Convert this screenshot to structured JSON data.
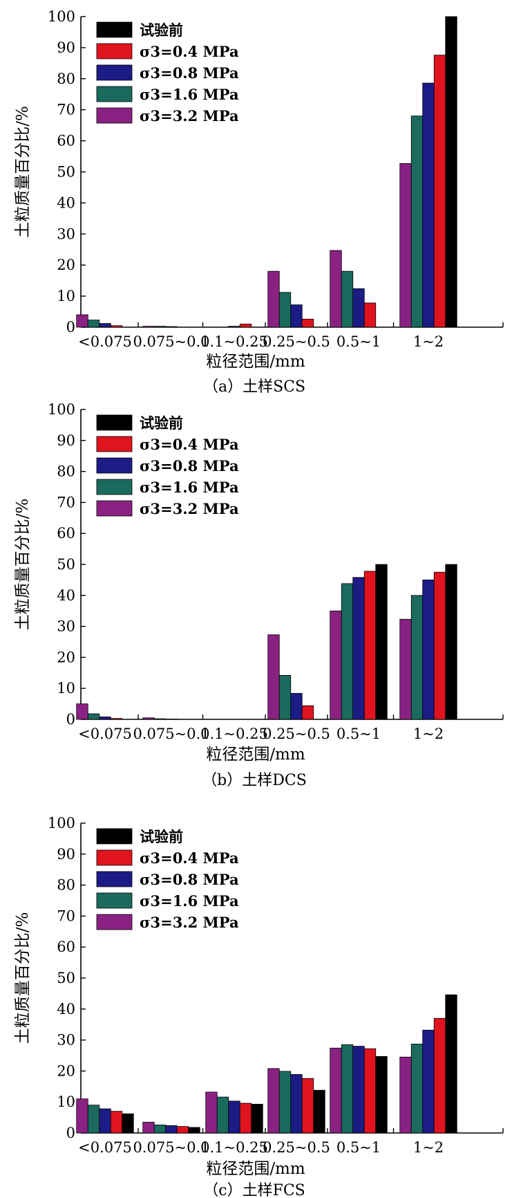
{
  "legend_labels": [
    "试验前",
    "σ3=0.4 MPa",
    "σ3=0.8 MPa",
    "σ3=1.6 MPa",
    "σ3=3.2 MPa"
  ],
  "colors": {
    "before": "#000000",
    "s04": "#e0141e",
    "s08": "#1c1c86",
    "s16": "#1a6a5e",
    "s32": "#8a2283"
  },
  "chart_data": [
    {
      "type": "bar",
      "caption": "（a）土样SCS",
      "xlabel": "粒径范围/mm",
      "ylabel": "土粒质量百分比/%",
      "ylim": [
        0,
        100
      ],
      "yticks": [
        0,
        10,
        20,
        30,
        40,
        50,
        60,
        70,
        80,
        90,
        100
      ],
      "categories": [
        "<0.075",
        "0.075~0.1",
        "0.1~0.25",
        "0.25~0.5",
        "0.5~1",
        "1~2"
      ],
      "series": [
        {
          "name": "σ3=3.2 MPa",
          "key": "s32",
          "values": [
            4.0,
            0.3,
            0.0,
            18.0,
            24.7,
            52.7
          ]
        },
        {
          "name": "σ3=1.6 MPa",
          "key": "s16",
          "values": [
            2.3,
            0.3,
            0.0,
            11.2,
            18.0,
            68.0
          ]
        },
        {
          "name": "σ3=0.8 MPa",
          "key": "s08",
          "values": [
            1.2,
            0.2,
            0.3,
            7.2,
            12.4,
            78.6
          ]
        },
        {
          "name": "σ3=0.4 MPa",
          "key": "s04",
          "values": [
            0.5,
            0.0,
            1.0,
            2.6,
            7.8,
            87.6
          ]
        },
        {
          "name": "试验前",
          "key": "before",
          "values": [
            0.0,
            0.0,
            0.0,
            0.0,
            0.0,
            100.0
          ]
        }
      ],
      "legend": "top-left"
    },
    {
      "type": "bar",
      "caption": "（b）土样DCS",
      "xlabel": "粒径范围/mm",
      "ylabel": "土粒质量百分比/%",
      "ylim": [
        0,
        100
      ],
      "yticks": [
        0,
        10,
        20,
        30,
        40,
        50,
        60,
        70,
        80,
        90,
        100
      ],
      "categories": [
        "<0.075",
        "0.075~0.1",
        "0.1~0.25",
        "0.25~0.5",
        "0.5~1",
        "1~2"
      ],
      "series": [
        {
          "name": "σ3=3.2 MPa",
          "key": "s32",
          "values": [
            5.0,
            0.5,
            0.0,
            27.3,
            35.0,
            32.3
          ]
        },
        {
          "name": "σ3=1.6 MPa",
          "key": "s16",
          "values": [
            1.8,
            0.2,
            0.0,
            14.2,
            43.8,
            40.0
          ]
        },
        {
          "name": "σ3=0.8 MPa",
          "key": "s08",
          "values": [
            0.8,
            0.1,
            0.0,
            8.4,
            45.8,
            45.0
          ]
        },
        {
          "name": "σ3=0.4 MPa",
          "key": "s04",
          "values": [
            0.3,
            0.0,
            0.0,
            4.4,
            47.8,
            47.5
          ]
        },
        {
          "name": "试验前",
          "key": "before",
          "values": [
            0.0,
            0.0,
            0.0,
            0.0,
            50.0,
            50.0
          ]
        }
      ],
      "legend": "top-left"
    },
    {
      "type": "bar",
      "caption": "（c）土样FCS",
      "xlabel": "粒径范围/mm",
      "ylabel": "土粒质量百分比/%",
      "ylim": [
        0,
        100
      ],
      "yticks": [
        0,
        10,
        20,
        30,
        40,
        50,
        60,
        70,
        80,
        90,
        100
      ],
      "categories": [
        "<0.075",
        "0.075~0.1",
        "0.1~0.25",
        "0.25~0.5",
        "0.5~1",
        "1~2"
      ],
      "series": [
        {
          "name": "σ3=3.2 MPa",
          "key": "s32",
          "values": [
            11.0,
            3.5,
            13.2,
            20.8,
            27.4,
            24.5
          ]
        },
        {
          "name": "σ3=1.6 MPa",
          "key": "s16",
          "values": [
            9.0,
            2.6,
            11.6,
            19.9,
            28.5,
            28.7
          ]
        },
        {
          "name": "σ3=0.8 MPa",
          "key": "s08",
          "values": [
            7.8,
            2.4,
            10.3,
            18.9,
            28.0,
            33.2
          ]
        },
        {
          "name": "σ3=0.4 MPa",
          "key": "s04",
          "values": [
            7.0,
            2.1,
            9.6,
            17.6,
            27.2,
            37.0
          ]
        },
        {
          "name": "试验前",
          "key": "before",
          "values": [
            6.2,
            1.8,
            9.3,
            13.8,
            24.7,
            44.6
          ]
        }
      ],
      "legend": "top-left"
    }
  ]
}
